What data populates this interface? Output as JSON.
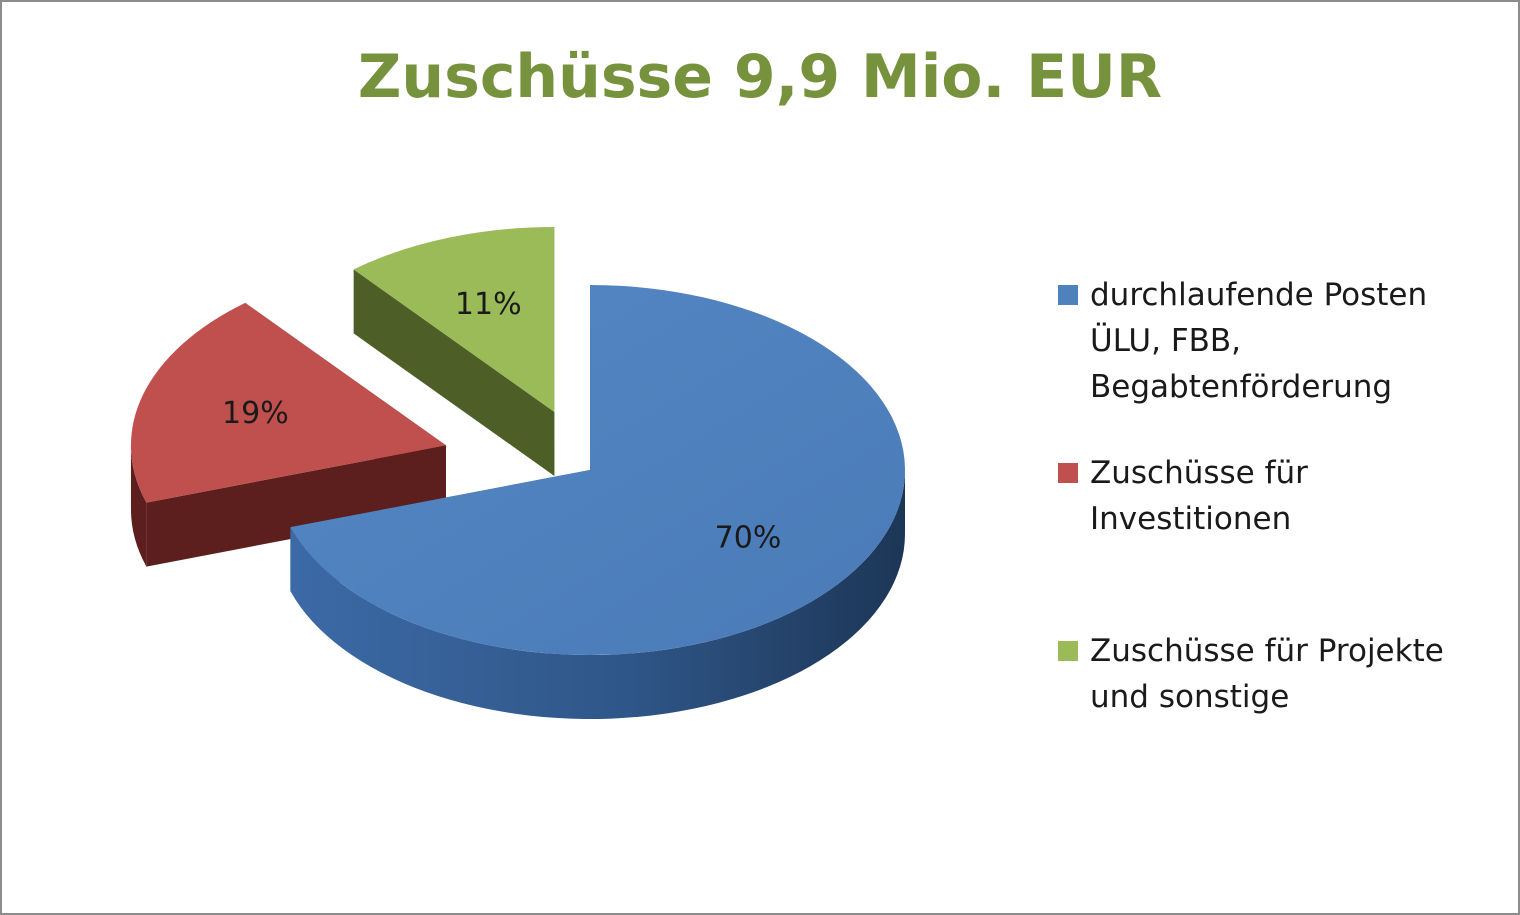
{
  "chart_data": {
    "type": "pie",
    "title": "Zuschüsse 9,9 Mio. EUR",
    "style": "3d-exploded",
    "slices": [
      {
        "label_lines": [
          "durchlaufende Posten",
          "ÜLU, FBB,",
          "Begabtenförderung"
        ],
        "value": 70,
        "data_label": "70%",
        "color": "#4f81bd"
      },
      {
        "label_lines": [
          "Zuschüsse für",
          "Investitionen"
        ],
        "value": 19,
        "data_label": "19%",
        "color": "#c0504d"
      },
      {
        "label_lines": [
          "Zuschüsse für Projekte",
          "und sonstige"
        ],
        "value": 11,
        "data_label": "11%",
        "color": "#9bbb59"
      }
    ],
    "legend_position": "right"
  }
}
